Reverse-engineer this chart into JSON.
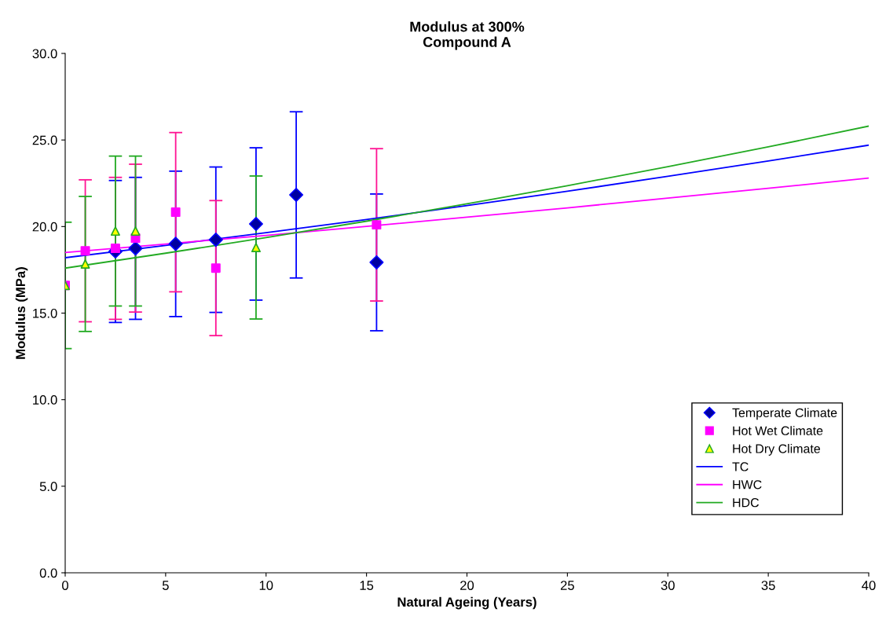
{
  "chart_data": {
    "type": "scatter",
    "title": "Modulus at 300%\nCompound A",
    "xlabel": "Natural Ageing (Years)",
    "ylabel": "Modulus (MPa)",
    "xlim": [
      0,
      40
    ],
    "xticks": [
      0,
      5,
      10,
      15,
      20,
      25,
      30,
      35,
      40
    ],
    "ylim": [
      0,
      30
    ],
    "yticks": [
      {
        "value": 0,
        "label": "0.0"
      },
      {
        "value": 5,
        "label": "5.0"
      },
      {
        "value": 10,
        "label": "10.0"
      },
      {
        "value": 15,
        "label": "15.0"
      },
      {
        "value": 20,
        "label": "20.0"
      },
      {
        "value": 25,
        "label": "25.0"
      },
      {
        "value": 30,
        "label": "30.0"
      }
    ],
    "grid": false,
    "legend": "bottom right",
    "series": [
      {
        "name": "Temperate Climate",
        "marker": "diamond",
        "color": "#0000a0",
        "x": [
          2.5,
          3.5,
          5.5,
          7.5,
          9.5,
          11.5,
          15.5
        ],
        "values": [
          18.56,
          18.74,
          19.0,
          19.24,
          20.15,
          21.83,
          17.93
        ],
        "errors": [
          4.1,
          4.1,
          4.2,
          4.2,
          4.4,
          4.8,
          3.95
        ]
      },
      {
        "name": "Hot Wet Climate",
        "marker": "square",
        "color": "#ff00ff",
        "x": [
          0,
          1,
          2.5,
          3.5,
          5.5,
          7.5,
          15.5
        ],
        "values": [
          16.6,
          18.6,
          18.74,
          19.33,
          20.83,
          17.6,
          20.1
        ],
        "errors": [
          null,
          4.1,
          4.1,
          4.27,
          4.6,
          3.9,
          4.4
        ]
      },
      {
        "name": "Hot Dry Climate",
        "marker": "triangle",
        "color": "#ffff00",
        "x": [
          0,
          1,
          2.5,
          3.5,
          9.5
        ],
        "values": [
          16.6,
          17.84,
          19.74,
          19.74,
          18.79
        ],
        "errors": [
          3.65,
          3.9,
          4.33,
          4.33,
          4.13
        ]
      },
      {
        "name": "TC",
        "type": "line",
        "color": "#0000ff",
        "x": [
          0,
          5,
          10,
          15,
          20,
          25,
          30,
          35,
          40
        ],
        "values": [
          18.2,
          18.91,
          19.65,
          20.41,
          21.21,
          22.04,
          22.9,
          23.79,
          24.7
        ]
      },
      {
        "name": "HWC",
        "type": "line",
        "color": "#ff00ff",
        "x": [
          0,
          5,
          10,
          15,
          20,
          25,
          30,
          35,
          40
        ],
        "values": [
          18.5,
          18.99,
          19.49,
          20.01,
          20.54,
          21.08,
          21.64,
          22.21,
          22.8
        ]
      },
      {
        "name": "HDC",
        "type": "line",
        "color": "#22aa22",
        "x": [
          0,
          5,
          10,
          15,
          20,
          25,
          30,
          35,
          40
        ],
        "values": [
          17.6,
          18.46,
          19.36,
          20.31,
          21.31,
          22.36,
          23.46,
          24.6,
          25.8
        ]
      }
    ]
  }
}
